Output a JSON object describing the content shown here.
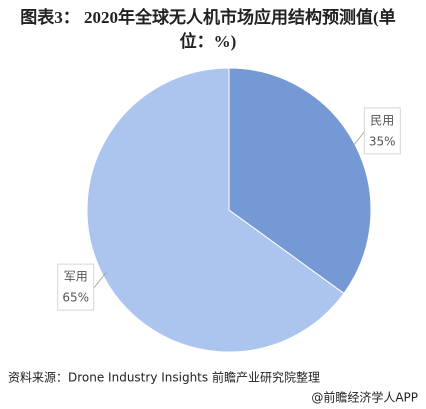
{
  "chart_data": {
    "type": "pie",
    "title": "图表3： 2020年全球无人机市场应用结构预测值(单位：%)",
    "categories": [
      "民用",
      "军用"
    ],
    "values": [
      35,
      65
    ],
    "value_labels": [
      "35%",
      "65%"
    ],
    "colors": [
      "#7599d4",
      "#abc5ee"
    ],
    "source": "资料来源：Drone Industry Insights 前瞻产业研究院整理",
    "credit": "@前瞻经济学人APP"
  }
}
